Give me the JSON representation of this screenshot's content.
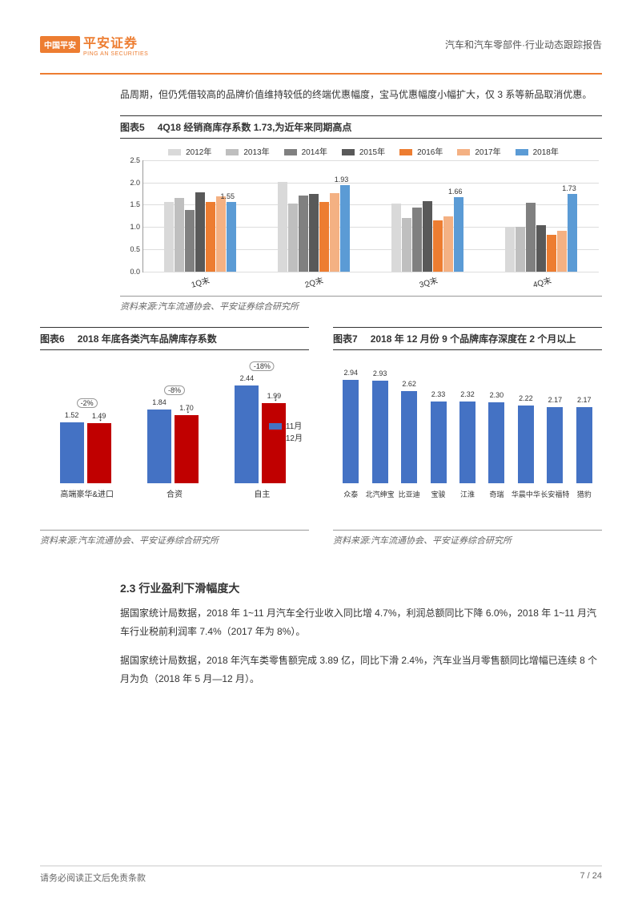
{
  "header": {
    "logo_box": "中国平安",
    "logo_main": "平安证券",
    "logo_sub": "PING AN SECURITIES",
    "right": "汽车和汽车零部件·行业动态跟踪报告"
  },
  "intro_text": "品周期，但仍凭借较高的品牌价值维持较低的终端优惠幅度，宝马优惠幅度小幅扩大，仅 3 系等新品取消优惠。",
  "chart5": {
    "label": "图表5",
    "title": "4Q18 经销商库存系数 1.73,为近年来同期高点",
    "type": "bar",
    "ylim": [
      0,
      2.5
    ],
    "ytick_step": 0.5,
    "categories": [
      "1Q末",
      "2Q末",
      "3Q末",
      "4Q末"
    ],
    "series": [
      {
        "name": "2012年",
        "color": "#d9d9d9",
        "values": [
          1.55,
          2.0,
          1.52,
          1.0
        ]
      },
      {
        "name": "2013年",
        "color": "#bfbfbf",
        "values": [
          1.64,
          1.52,
          1.2,
          1.0
        ]
      },
      {
        "name": "2014年",
        "color": "#808080",
        "values": [
          1.38,
          1.7,
          1.43,
          1.53
        ]
      },
      {
        "name": "2015年",
        "color": "#595959",
        "values": [
          1.77,
          1.72,
          1.56,
          1.03
        ]
      },
      {
        "name": "2016年",
        "color": "#ed7d31",
        "values": [
          1.55,
          1.55,
          1.14,
          0.82
        ]
      },
      {
        "name": "2017年",
        "color": "#f4b183",
        "values": [
          1.67,
          1.75,
          1.22,
          0.91
        ]
      },
      {
        "name": "2018年",
        "color": "#5b9bd5",
        "values": [
          1.55,
          1.93,
          1.66,
          1.73
        ]
      }
    ],
    "value_labels": [
      {
        "group": 0,
        "text": "1.55",
        "above_series": 6
      },
      {
        "group": 1,
        "text": "1.93",
        "above_series": 6
      },
      {
        "group": 2,
        "text": "1.66",
        "above_series": 6
      },
      {
        "group": 3,
        "text": "1.73",
        "above_series": 6
      }
    ],
    "grid_color": "#dddddd",
    "source": "资料来源:汽车流通协会、平安证券综合研究所"
  },
  "chart6": {
    "label": "图表6",
    "title": "2018 年底各类汽车品牌库存系数",
    "type": "bar",
    "categories": [
      "高端豪华&进口",
      "合资",
      "自主"
    ],
    "series": [
      {
        "name": "11月",
        "color": "#4472c4",
        "values": [
          1.52,
          1.84,
          2.44
        ]
      },
      {
        "name": "12月",
        "color": "#c00000",
        "values": [
          1.49,
          1.7,
          1.99
        ]
      }
    ],
    "pct_changes": [
      "-2%",
      "-8%",
      "-18%"
    ],
    "ymax": 2.8,
    "source": "资料来源:汽车流通协会、平安证券综合研究所"
  },
  "chart7": {
    "label": "图表7",
    "title": "2018 年 12 月份 9 个品牌库存深度在 2 个月以上",
    "type": "bar",
    "color": "#4472c4",
    "categories": [
      "众泰",
      "北汽绅宝",
      "比亚迪",
      "宝骏",
      "江淮",
      "奇瑞",
      "华晨中华",
      "长安福特",
      "猎豹"
    ],
    "values": [
      2.94,
      2.93,
      2.62,
      2.33,
      2.32,
      2.3,
      2.22,
      2.17,
      2.17
    ],
    "ymax": 3.2,
    "source": "资料来源:汽车流通协会、平安证券综合研究所"
  },
  "section": {
    "head": "2.3 行业盈利下滑幅度大",
    "p1": "据国家统计局数据，2018 年 1~11 月汽车全行业收入同比增 4.7%，利润总额同比下降 6.0%，2018 年 1~11 月汽车行业税前利润率 7.4%（2017 年为 8%）。",
    "p2": "据国家统计局数据，2018 年汽车类零售额完成 3.89 亿，同比下滑 2.4%，汽车业当月零售额同比增幅已连续 8 个月为负（2018 年 5 月—12 月）。"
  },
  "footer": {
    "left": "请务必阅读正文后免责条款",
    "right": "7 / 24"
  }
}
